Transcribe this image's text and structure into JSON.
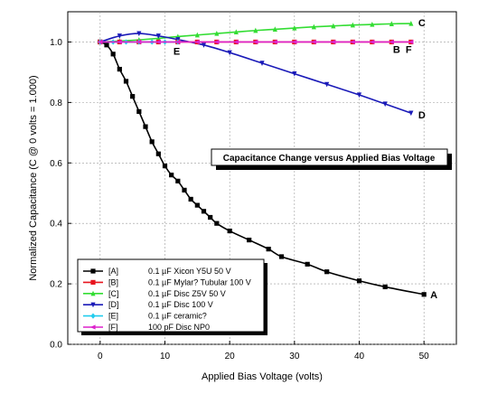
{
  "chart_data": {
    "type": "line",
    "title": "Capacitance Change versus Applied Bias Voltage",
    "xlabel": "Applied Bias Voltage (volts)",
    "ylabel": "Normalized Capacitance (C @ 0 volts = 1.000)",
    "xlim": [
      -5,
      55
    ],
    "ylim": [
      0.0,
      1.1
    ],
    "xticks": [
      0,
      10,
      20,
      30,
      40,
      50
    ],
    "yticks": [
      0.0,
      0.2,
      0.4,
      0.6,
      0.8,
      1.0
    ],
    "ytick_labels": [
      "0.0",
      "0.2",
      "0.4",
      "0.6",
      "0.8",
      "1.0"
    ],
    "grid": true,
    "legend_placement": "bottom-left",
    "series": [
      {
        "key": "[A]",
        "name": "0.1 µF Xicon Y5U 50 V",
        "end_label": "A",
        "color": "#000000",
        "marker": "square",
        "x": [
          0,
          1,
          2,
          3,
          4,
          5,
          6,
          7,
          8,
          9,
          10,
          11,
          12,
          13,
          14,
          15,
          16,
          17,
          18,
          20,
          23,
          26,
          28,
          32,
          35,
          40,
          44,
          50
        ],
        "y": [
          1.0,
          0.99,
          0.96,
          0.91,
          0.87,
          0.82,
          0.77,
          0.72,
          0.67,
          0.63,
          0.59,
          0.56,
          0.54,
          0.51,
          0.48,
          0.46,
          0.44,
          0.42,
          0.4,
          0.375,
          0.345,
          0.315,
          0.29,
          0.265,
          0.24,
          0.21,
          0.19,
          0.165
        ]
      },
      {
        "key": "[B]",
        "name": "0.1 µF Mylar? Tubular 100 V",
        "end_label": "B",
        "color": "#e8141e",
        "marker": "square",
        "x": [
          0,
          3,
          6,
          9,
          12,
          15,
          18,
          21,
          24,
          27,
          30,
          33,
          36,
          39,
          42,
          45,
          48
        ],
        "y": [
          1.0,
          1.0,
          1.0,
          1.0,
          1.0,
          1.0,
          1.0,
          1.0,
          1.0,
          1.0,
          1.0,
          1.0,
          1.0,
          1.0,
          1.0,
          1.0,
          1.0
        ]
      },
      {
        "key": "[C]",
        "name": "0.1 µF Disc Z5V 50 V",
        "end_label": "C",
        "color": "#33dd33",
        "marker": "triangle-up",
        "x": [
          0,
          3,
          6,
          9,
          12,
          15,
          18,
          21,
          24,
          27,
          30,
          33,
          36,
          39,
          42,
          45,
          48
        ],
        "y": [
          1.0,
          1.003,
          1.007,
          1.012,
          1.018,
          1.023,
          1.028,
          1.033,
          1.038,
          1.042,
          1.046,
          1.05,
          1.053,
          1.056,
          1.058,
          1.06,
          1.061
        ]
      },
      {
        "key": "[D]",
        "name": "0.1 µF Disc 100 V",
        "end_label": "D",
        "color": "#1a1ab8",
        "marker": "triangle-down",
        "x": [
          0,
          3,
          6,
          9,
          12,
          16,
          20,
          25,
          30,
          35,
          40,
          44,
          48
        ],
        "y": [
          1.0,
          1.02,
          1.028,
          1.02,
          1.008,
          0.99,
          0.965,
          0.93,
          0.895,
          0.86,
          0.825,
          0.795,
          0.765
        ]
      },
      {
        "key": "[E]",
        "name": "0.1 µF ceramic?",
        "end_label": "E",
        "color": "#22ccee",
        "marker": "diamond",
        "x": [
          0,
          2,
          4,
          6,
          8,
          10,
          12
        ],
        "y": [
          1.0,
          1.0,
          1.0,
          1.0,
          1.0,
          1.0,
          1.0
        ]
      },
      {
        "key": "[F]",
        "name": "100 pF Disc NP0",
        "end_label": "F",
        "color": "#dd22cc",
        "marker": "triangle-left",
        "x": [
          0,
          3,
          6,
          9,
          12,
          15,
          18,
          21,
          24,
          27,
          30,
          33,
          36,
          39,
          42,
          45,
          48
        ],
        "y": [
          1.0,
          1.0,
          1.0,
          1.0,
          1.0,
          1.0,
          1.0,
          1.0,
          1.0,
          1.0,
          1.0,
          1.0,
          1.0,
          1.0,
          1.0,
          1.0,
          1.0
        ]
      }
    ]
  }
}
